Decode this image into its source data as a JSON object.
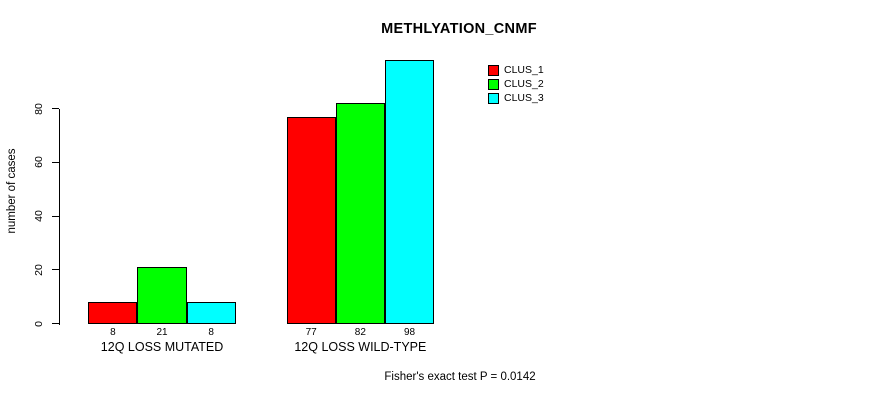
{
  "chart_data": {
    "type": "bar",
    "title": "METHLYATION_CNMF",
    "ylabel": "number of cases",
    "xlabel": "",
    "annotation": "Fisher's exact test P = 0.0142",
    "yticks": [
      0,
      20,
      40,
      60,
      80
    ],
    "ylim": [
      0,
      98
    ],
    "grid": false,
    "legend_position": "top-right",
    "categories": [
      "12Q LOSS MUTATED",
      "12Q LOSS WILD-TYPE"
    ],
    "series": [
      {
        "name": "CLUS_1",
        "color": "#FF0000",
        "values": [
          8,
          77
        ]
      },
      {
        "name": "CLUS_2",
        "color": "#00FF00",
        "values": [
          21,
          82
        ]
      },
      {
        "name": "CLUS_3",
        "color": "#00FFFF",
        "values": [
          8,
          98
        ]
      }
    ],
    "bar_value_labels": [
      [
        8,
        21,
        8
      ],
      [
        77,
        82,
        98
      ]
    ],
    "axis_color": "#000000",
    "background_color": "#FFFFFF"
  }
}
